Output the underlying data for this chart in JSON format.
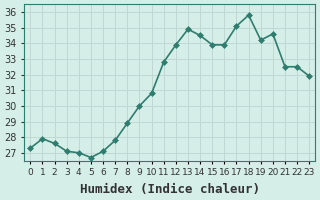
{
  "x": [
    0,
    1,
    2,
    3,
    4,
    5,
    6,
    7,
    8,
    9,
    10,
    11,
    12,
    13,
    14,
    15,
    16,
    17,
    18,
    19,
    20,
    21,
    22,
    23
  ],
  "y": [
    27.3,
    27.9,
    27.6,
    27.1,
    27.0,
    26.7,
    27.1,
    27.8,
    28.9,
    30.0,
    30.8,
    32.8,
    33.9,
    34.9,
    34.5,
    33.9,
    33.9,
    35.1,
    35.8,
    34.2,
    34.6,
    32.5,
    32.5,
    31.9
  ],
  "line_color": "#2e7d6e",
  "marker": "D",
  "marker_size": 3,
  "line_width": 1.2,
  "bg_color": "#d6eee8",
  "grid_color": "#c0d8d4",
  "tick_label_color": "#333333",
  "xlabel": "Humidex (Indice chaleur)",
  "xlabel_fontsize": 9,
  "tick_fontsize": 7,
  "ylim": [
    26.5,
    36.5
  ],
  "yticks": [
    27,
    28,
    29,
    30,
    31,
    32,
    33,
    34,
    35,
    36
  ],
  "xtick_labels": [
    "0",
    "1",
    "2",
    "3",
    "4",
    "5",
    "6",
    "7",
    "8",
    "9",
    "10",
    "11",
    "12",
    "13",
    "14",
    "15",
    "16",
    "17",
    "18",
    "19",
    "20",
    "21",
    "22",
    "23"
  ],
  "spine_color": "#2e7d6e"
}
